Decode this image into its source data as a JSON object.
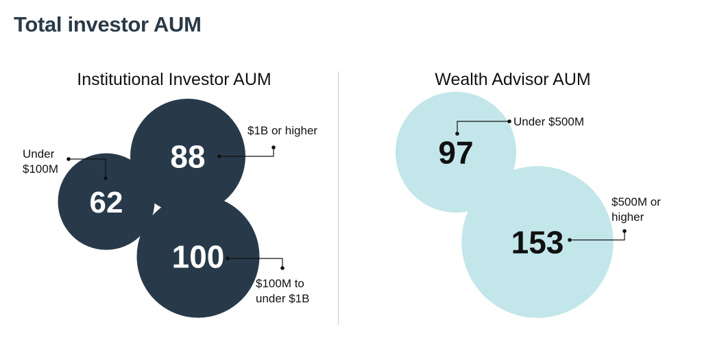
{
  "page": {
    "title": "Total investor AUM"
  },
  "colors": {
    "institutional": "#283a4a",
    "wealth": "#c3e6ea",
    "institutional_text": "#ffffff",
    "wealth_text": "#111111",
    "leader": "#111111"
  },
  "chart_data": [
    {
      "type": "bubble",
      "title": "Institutional Investor AUM",
      "series": [
        {
          "label": "Under $100M",
          "value": 62
        },
        {
          "label": "$1B or higher",
          "value": 88
        },
        {
          "label": "$100M to under $1B",
          "value": 100
        }
      ]
    },
    {
      "type": "bubble",
      "title": "Wealth Advisor AUM",
      "series": [
        {
          "label": "Under $500M",
          "value": 97
        },
        {
          "label": "$500M or higher",
          "value": 153
        }
      ]
    }
  ]
}
